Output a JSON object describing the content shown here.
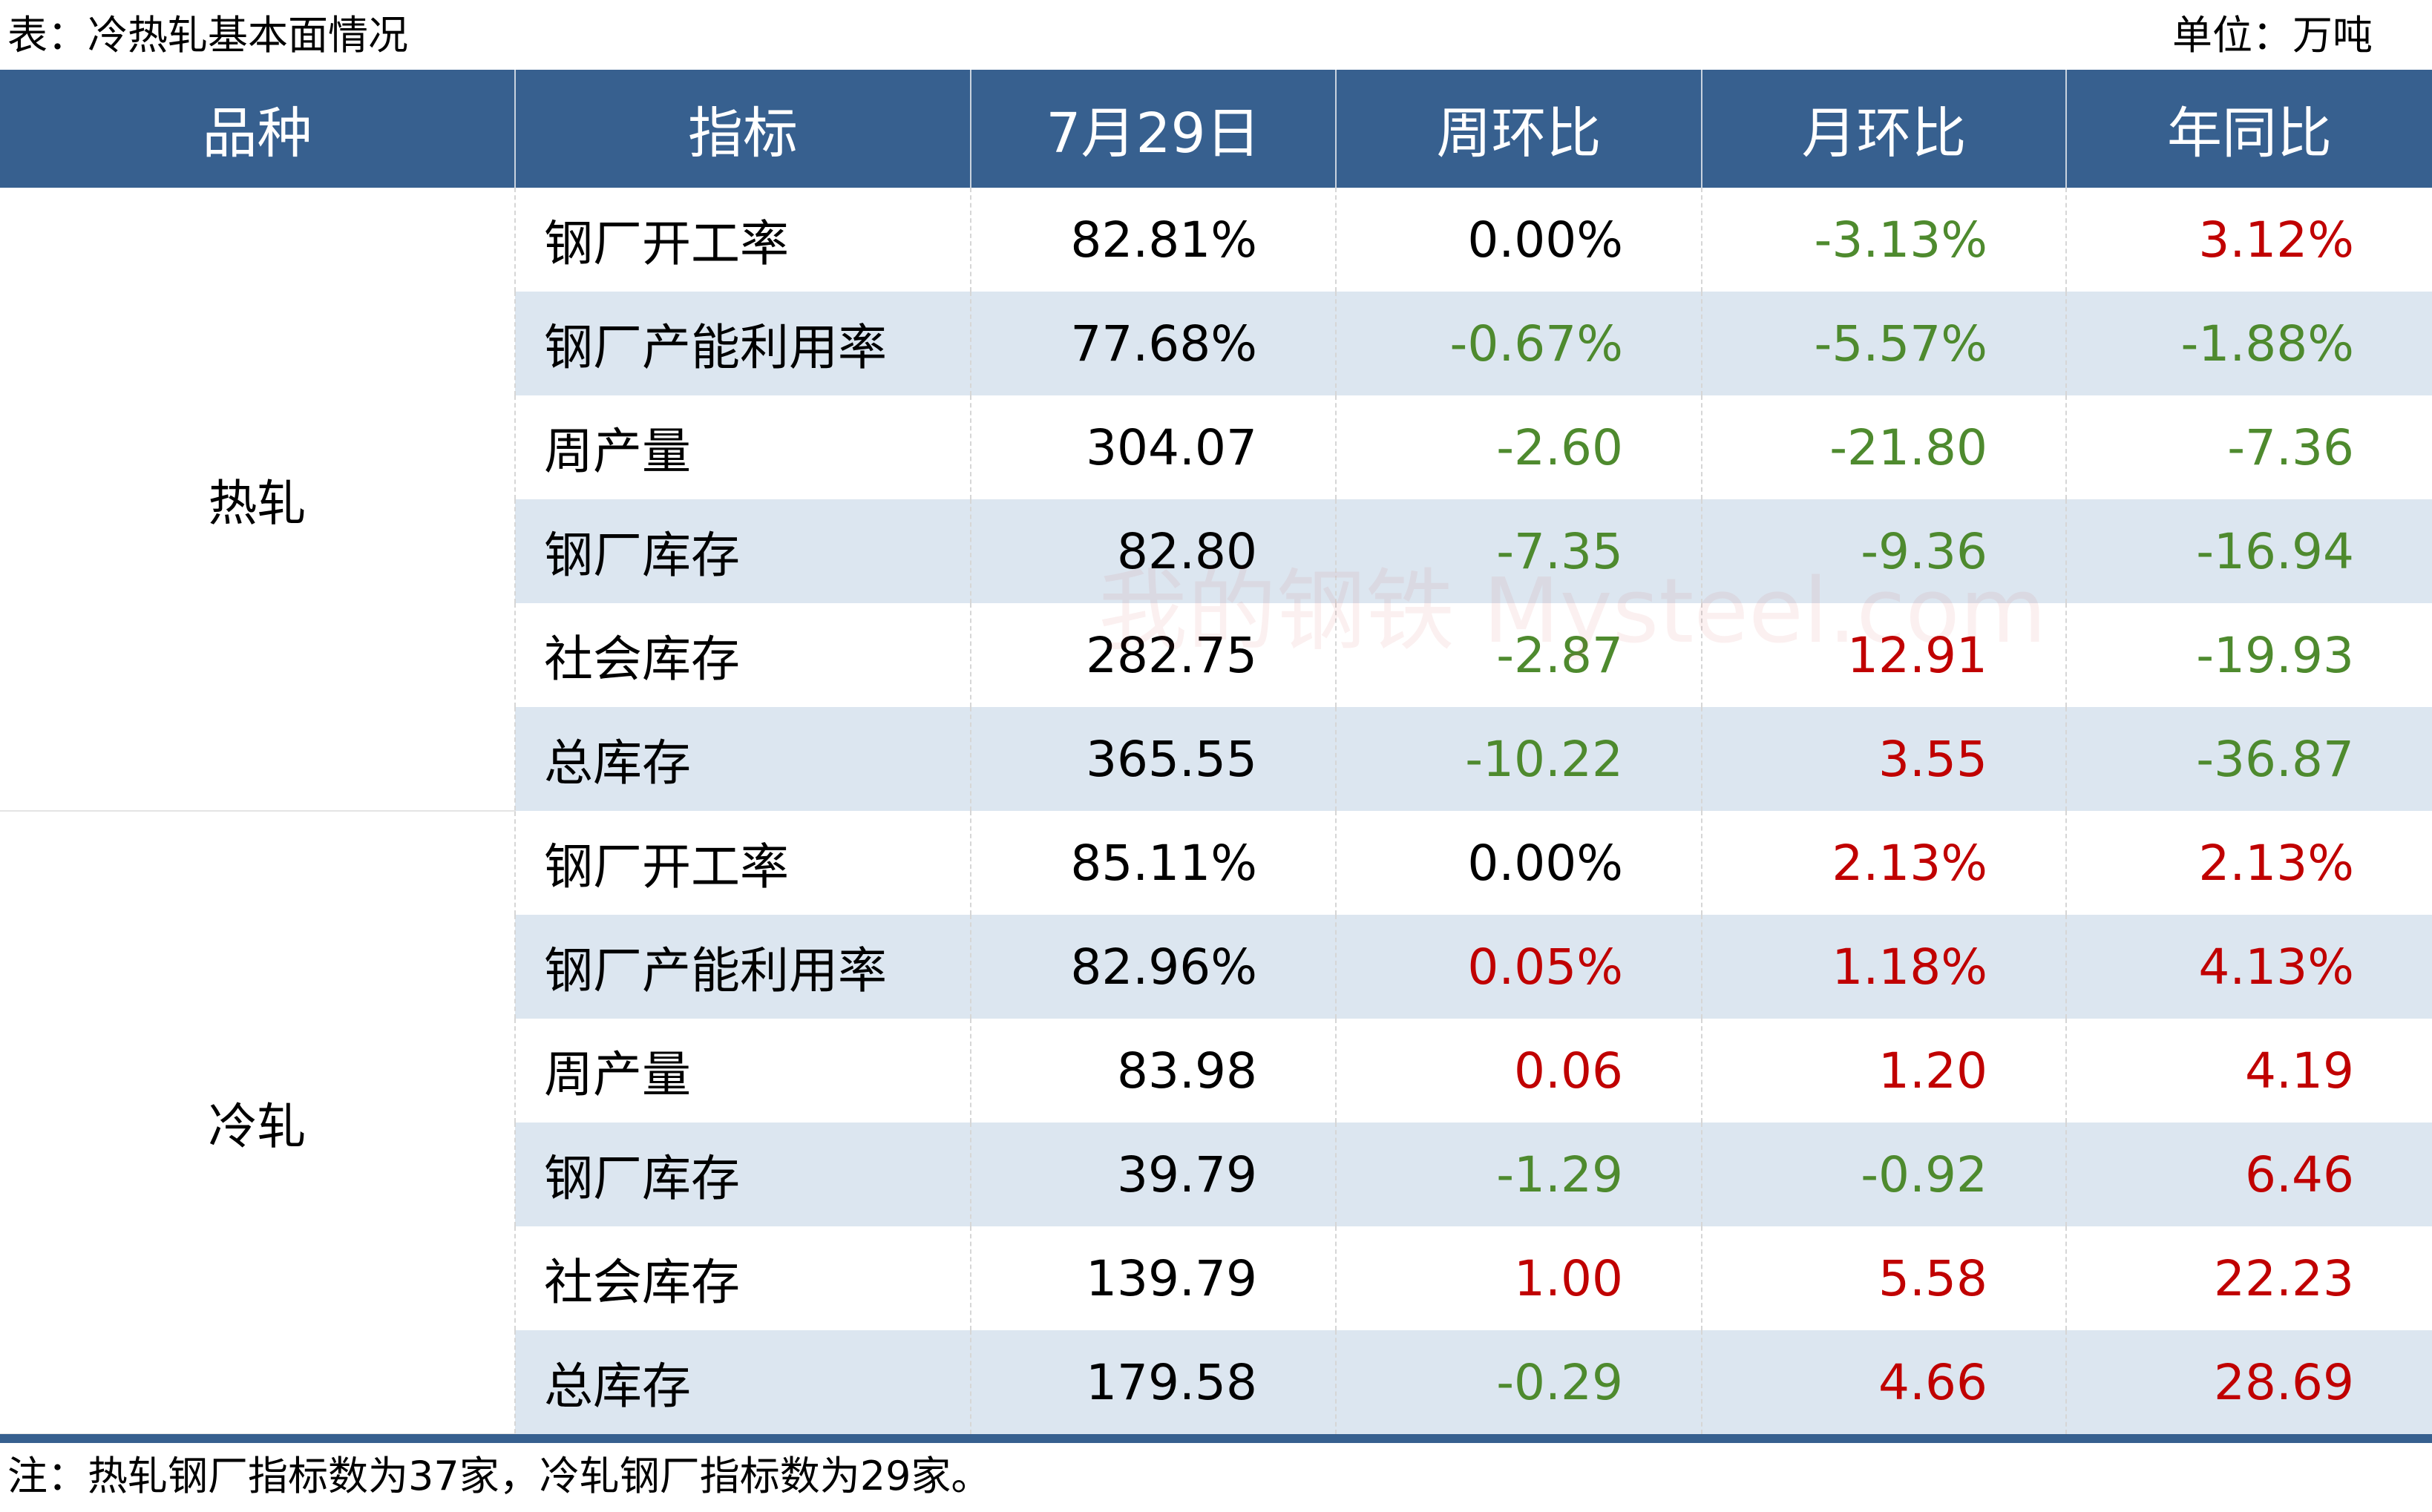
{
  "title": "表：冷热轧基本面情况",
  "unit": "单位：万吨",
  "headers": [
    "品种",
    "指标",
    "7月29日",
    "周环比",
    "月环比",
    "年同比"
  ],
  "groups": [
    {
      "name": "热轧",
      "rows": [
        {
          "indicator": "钢厂开工率",
          "value": "82.81%",
          "wow": "0.00%",
          "mom": "-3.13%",
          "yoy": "3.12%",
          "c": [
            "k",
            "g",
            "r"
          ]
        },
        {
          "indicator": "钢厂产能利用率",
          "value": "77.68%",
          "wow": "-0.67%",
          "mom": "-5.57%",
          "yoy": "-1.88%",
          "c": [
            "g",
            "g",
            "g"
          ]
        },
        {
          "indicator": "周产量",
          "value": "304.07",
          "wow": "-2.60",
          "mom": "-21.80",
          "yoy": "-7.36",
          "c": [
            "g",
            "g",
            "g"
          ]
        },
        {
          "indicator": "钢厂库存",
          "value": "82.80",
          "wow": "-7.35",
          "mom": "-9.36",
          "yoy": "-16.94",
          "c": [
            "g",
            "g",
            "g"
          ]
        },
        {
          "indicator": "社会库存",
          "value": "282.75",
          "wow": "-2.87",
          "mom": "12.91",
          "yoy": "-19.93",
          "c": [
            "g",
            "r",
            "g"
          ]
        },
        {
          "indicator": "总库存",
          "value": "365.55",
          "wow": "-10.22",
          "mom": "3.55",
          "yoy": "-36.87",
          "c": [
            "g",
            "r",
            "g"
          ]
        }
      ]
    },
    {
      "name": "冷轧",
      "rows": [
        {
          "indicator": "钢厂开工率",
          "value": "85.11%",
          "wow": "0.00%",
          "mom": "2.13%",
          "yoy": "2.13%",
          "c": [
            "k",
            "r",
            "r"
          ]
        },
        {
          "indicator": "钢厂产能利用率",
          "value": "82.96%",
          "wow": "0.05%",
          "mom": "1.18%",
          "yoy": "4.13%",
          "c": [
            "r",
            "r",
            "r"
          ]
        },
        {
          "indicator": "周产量",
          "value": "83.98",
          "wow": "0.06",
          "mom": "1.20",
          "yoy": "4.19",
          "c": [
            "r",
            "r",
            "r"
          ]
        },
        {
          "indicator": "钢厂库存",
          "value": "39.79",
          "wow": "-1.29",
          "mom": "-0.92",
          "yoy": "6.46",
          "c": [
            "g",
            "g",
            "r"
          ]
        },
        {
          "indicator": "社会库存",
          "value": "139.79",
          "wow": "1.00",
          "mom": "5.58",
          "yoy": "22.23",
          "c": [
            "r",
            "r",
            "r"
          ]
        },
        {
          "indicator": "总库存",
          "value": "179.58",
          "wow": "-0.29",
          "mom": "4.66",
          "yoy": "28.69",
          "c": [
            "g",
            "r",
            "r"
          ]
        }
      ]
    }
  ],
  "note": "注：热轧钢厂指标数为37家，冷轧钢厂指标数为29家。",
  "watermark": "我的钢铁 Mysteel.com",
  "colors": {
    "header": "#37608f",
    "alt_row": "#dce6f0",
    "up": "#c00000",
    "down": "#4e8a2e"
  }
}
